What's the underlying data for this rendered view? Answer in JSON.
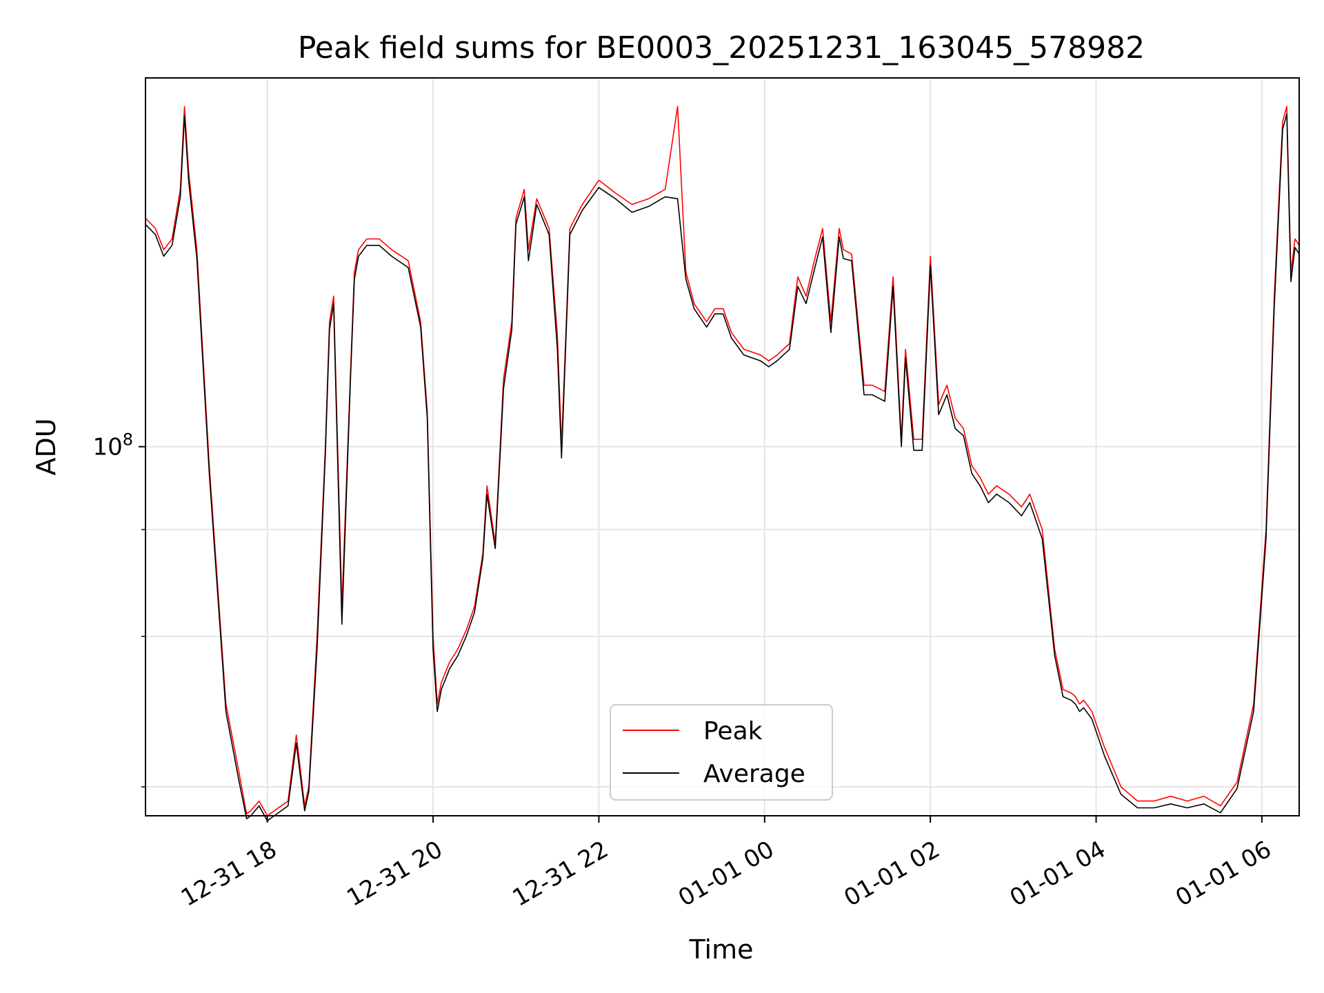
{
  "chart_data": {
    "type": "line",
    "title": "Peak field sums for BE0003_20251231_163045_578982",
    "xlabel": "Time",
    "ylabel": "ADU",
    "yscale": "log",
    "ylim": [
      37000000,
      270000000
    ],
    "xlim_hours": [
      16.53,
      30.45
    ],
    "grid": true,
    "legend_position": "lower-center",
    "x_ticks": [
      {
        "hour": 18,
        "label": "12-31 18"
      },
      {
        "hour": 20,
        "label": "12-31 20"
      },
      {
        "hour": 22,
        "label": "12-31 22"
      },
      {
        "hour": 24,
        "label": "01-01 00"
      },
      {
        "hour": 26,
        "label": "01-01 02"
      },
      {
        "hour": 28,
        "label": "01-01 04"
      },
      {
        "hour": 30,
        "label": "01-01 06"
      }
    ],
    "y_major_ticks": [
      {
        "value": 100000000,
        "base": "10",
        "exp": "8"
      }
    ],
    "y_minor_ticks": [
      40000000,
      60000000,
      80000000
    ],
    "x_hours": [
      16.53,
      16.65,
      16.75,
      16.85,
      16.95,
      17.0,
      17.05,
      17.15,
      17.3,
      17.5,
      17.65,
      17.75,
      17.8,
      17.9,
      18.0,
      18.1,
      18.25,
      18.35,
      18.45,
      18.5,
      18.6,
      18.7,
      18.75,
      18.8,
      18.9,
      19.0,
      19.05,
      19.1,
      19.2,
      19.35,
      19.5,
      19.7,
      19.85,
      19.93,
      20.0,
      20.05,
      20.1,
      20.2,
      20.3,
      20.4,
      20.5,
      20.6,
      20.65,
      20.75,
      20.85,
      20.95,
      21.0,
      21.1,
      21.15,
      21.25,
      21.3,
      21.4,
      21.5,
      21.55,
      21.65,
      21.8,
      22.0,
      22.2,
      22.4,
      22.6,
      22.8,
      22.95,
      23.05,
      23.15,
      23.3,
      23.4,
      23.5,
      23.6,
      23.75,
      23.95,
      24.05,
      24.15,
      24.3,
      24.4,
      24.5,
      24.6,
      24.7,
      24.8,
      24.9,
      24.95,
      25.05,
      25.2,
      25.3,
      25.45,
      25.55,
      25.65,
      25.7,
      25.8,
      25.9,
      26.0,
      26.1,
      26.2,
      26.3,
      26.4,
      26.5,
      26.6,
      26.7,
      26.8,
      26.95,
      27.1,
      27.2,
      27.35,
      27.5,
      27.6,
      27.7,
      27.75,
      27.8,
      27.85,
      27.95,
      28.1,
      28.3,
      28.5,
      28.7,
      28.9,
      29.1,
      29.3,
      29.5,
      29.7,
      29.9,
      30.05,
      30.15,
      30.25,
      30.3,
      30.35,
      30.4,
      30.45
    ],
    "series": [
      {
        "name": "Peak",
        "color": "#ff0000",
        "values": [
          185000000,
          180000000,
          170000000,
          175000000,
          200000000,
          250000000,
          210000000,
          170000000,
          95000000,
          50000000,
          42000000,
          37200000,
          37500000,
          38500000,
          37000000,
          37600000,
          38500000,
          46000000,
          38000000,
          40000000,
          60000000,
          100000000,
          140000000,
          150000000,
          65000000,
          120000000,
          160000000,
          170000000,
          175000000,
          175000000,
          170000000,
          165000000,
          140000000,
          110000000,
          60000000,
          50000000,
          53000000,
          56000000,
          58000000,
          61000000,
          65000000,
          75000000,
          90000000,
          77000000,
          120000000,
          140000000,
          185000000,
          200000000,
          170000000,
          195000000,
          190000000,
          180000000,
          135000000,
          100000000,
          180000000,
          192000000,
          205000000,
          198000000,
          192000000,
          195000000,
          200000000,
          250000000,
          160000000,
          147000000,
          140000000,
          145000000,
          145000000,
          136000000,
          130000000,
          128000000,
          126000000,
          128000000,
          132000000,
          158000000,
          150000000,
          165000000,
          180000000,
          140000000,
          180000000,
          170000000,
          168000000,
          118000000,
          118000000,
          116000000,
          158000000,
          102000000,
          130000000,
          102000000,
          102000000,
          167000000,
          112000000,
          118000000,
          108000000,
          105000000,
          95000000,
          92000000,
          88000000,
          90000000,
          88000000,
          85000000,
          88000000,
          80000000,
          58000000,
          52000000,
          51500000,
          51000000,
          50000000,
          50500000,
          49000000,
          44500000,
          40000000,
          38500000,
          38500000,
          39000000,
          38500000,
          39000000,
          38000000,
          40500000,
          50000000,
          80000000,
          150000000,
          240000000,
          250000000,
          160000000,
          175000000,
          172000000
        ]
      },
      {
        "name": "Average",
        "color": "#000000",
        "values": [
          182000000,
          177000000,
          167000000,
          172000000,
          196000000,
          244000000,
          205000000,
          166000000,
          93000000,
          49000000,
          41000000,
          36700000,
          37000000,
          38000000,
          36500000,
          37100000,
          38000000,
          45000000,
          37500000,
          39500000,
          58000000,
          98000000,
          137000000,
          147000000,
          62000000,
          118000000,
          157000000,
          167000000,
          172000000,
          172000000,
          167000000,
          162000000,
          138000000,
          108000000,
          58000000,
          49000000,
          52000000,
          55000000,
          57000000,
          60000000,
          64000000,
          74000000,
          88000000,
          76000000,
          117000000,
          137000000,
          182000000,
          196000000,
          165000000,
          192000000,
          187000000,
          177000000,
          130000000,
          97000000,
          177000000,
          189000000,
          201000000,
          195000000,
          188000000,
          191000000,
          196000000,
          195000000,
          157000000,
          145000000,
          138000000,
          143000000,
          143000000,
          134000000,
          128000000,
          126000000,
          124000000,
          126000000,
          130000000,
          154000000,
          147000000,
          161000000,
          176000000,
          136000000,
          176000000,
          166000000,
          165000000,
          115000000,
          115000000,
          113000000,
          154000000,
          100000000,
          127000000,
          99000000,
          99000000,
          163000000,
          109000000,
          115000000,
          105000000,
          103000000,
          93000000,
          90000000,
          86000000,
          88000000,
          86000000,
          83000000,
          86000000,
          78000000,
          57000000,
          51000000,
          50500000,
          50000000,
          49000000,
          49500000,
          48000000,
          43500000,
          39200000,
          37800000,
          37800000,
          38200000,
          37800000,
          38200000,
          37300000,
          39800000,
          49000000,
          78000000,
          146000000,
          235000000,
          245000000,
          156000000,
          171000000,
          168000000
        ]
      }
    ]
  }
}
